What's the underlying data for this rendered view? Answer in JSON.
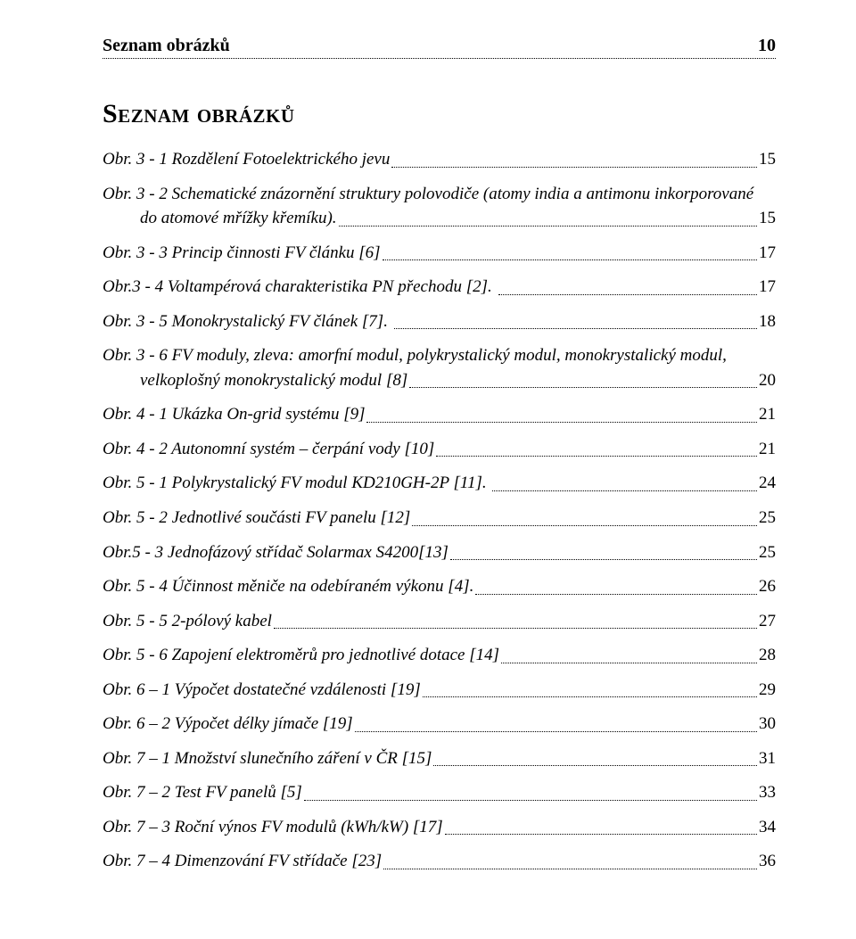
{
  "header": {
    "title": "Seznam obrázků",
    "page_number": "10"
  },
  "heading": "Seznam obrázků",
  "toc": [
    {
      "label": "Obr. 3 - 1 Rozdělení Fotoelektrického jevu",
      "page": "15"
    },
    {
      "multiline": true,
      "line1": "Obr. 3 - 2 Schematické znázornění struktury polovodiče (atomy india a antimonu inkorporované",
      "line2": "do atomové mřížky křemíku).",
      "page": "15"
    },
    {
      "label": "Obr. 3 - 3 Princip činnosti FV článku [6]",
      "page": "17"
    },
    {
      "label": "Obr.3 - 4 Voltampérová charakteristika PN přechodu [2]. ",
      "page": "17"
    },
    {
      "label": "Obr. 3 - 5 Monokrystalický FV článek [7]. ",
      "page": "18"
    },
    {
      "multiline": true,
      "line1": "Obr. 3 - 6 FV moduly, zleva: amorfní modul, polykrystalický modul, monokrystalický modul,",
      "line2": "velkoplošný monokrystalický modul [8]",
      "page": "20"
    },
    {
      "label": "Obr. 4 - 1 Ukázka On-grid systému [9]",
      "page": "21"
    },
    {
      "label": "Obr. 4 - 2 Autonomní systém – čerpání vody [10]",
      "page": "21"
    },
    {
      "label": "Obr. 5 - 1 Polykrystalický FV modul KD210GH-2P [11]. ",
      "page": "24"
    },
    {
      "label": "Obr. 5 - 2 Jednotlivé součásti FV panelu [12]",
      "page": "25"
    },
    {
      "label": "Obr.5 - 3 Jednofázový střídač Solarmax S4200[13]",
      "page": "25"
    },
    {
      "label": "Obr. 5 - 4 Účinnost měniče na odebíraném výkonu [4].",
      "page": "26"
    },
    {
      "label": "Obr. 5 - 5 2-pólový kabel",
      "page": "27"
    },
    {
      "label": "Obr. 5 - 6 Zapojení elektroměrů pro jednotlivé dotace [14]",
      "page": "28"
    },
    {
      "label": "Obr. 6 – 1 Výpočet dostatečné vzdálenosti [19]",
      "page": "29"
    },
    {
      "label": "Obr. 6 – 2 Výpočet délky jímače [19]",
      "page": "30"
    },
    {
      "label": "Obr. 7 – 1 Množství slunečního záření v ČR [15]",
      "page": "31"
    },
    {
      "label": "Obr. 7 – 2 Test FV panelů [5]",
      "page": "33"
    },
    {
      "label": "Obr. 7 – 3 Roční výnos FV modulů (kWh/kW) [17]",
      "page": "34"
    },
    {
      "label": "Obr. 7 – 4 Dimenzování FV střídače [23]",
      "page": "36"
    }
  ]
}
